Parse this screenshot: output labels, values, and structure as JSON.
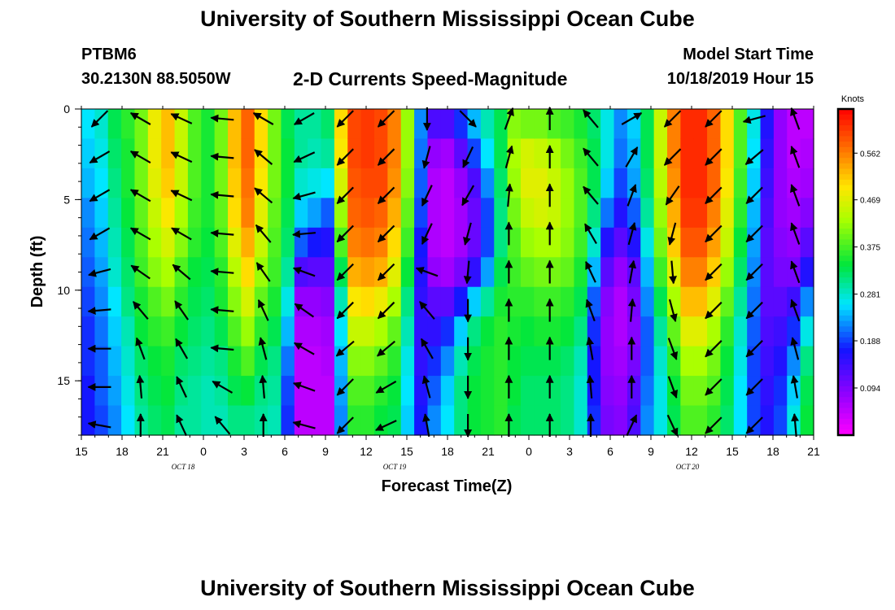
{
  "header": {
    "title": "University of Southern Mississippi Ocean Cube",
    "station": "PTBM6",
    "coords": "30.2130N 88.5050W",
    "subtitle": "2-D Currents Speed-Magnitude",
    "model_start_label": "Model Start Time",
    "model_start_value": "10/18/2019 Hour 15"
  },
  "footer": {
    "title": "University of Southern Mississippi Ocean Cube"
  },
  "chart_data": {
    "type": "heatmap",
    "title": "2-D Currents Speed-Magnitude",
    "xlabel": "Forecast Time(Z)",
    "ylabel": "Depth (ft)",
    "x_ticks": [
      "15",
      "18",
      "21",
      "0",
      "3",
      "6",
      "9",
      "12",
      "15",
      "18",
      "21",
      "0",
      "3",
      "6",
      "9",
      "12",
      "15",
      "18",
      "21"
    ],
    "date_labels": [
      "OCT 18",
      "OCT 19",
      "OCT 20"
    ],
    "y_ticks": [
      "0",
      "5",
      "10",
      "15"
    ],
    "y_range": [
      0,
      18
    ],
    "colorbar": {
      "unit": "Knots",
      "ticks": [
        "0.562",
        "0.469",
        "0.375",
        "0.281",
        "0.188",
        "0.094"
      ],
      "range": [
        0,
        0.65
      ]
    },
    "speed_knots_by_time": [
      {
        "hour": 15,
        "speed": [
          0.26,
          0.25,
          0.24,
          0.22,
          0.21,
          0.2,
          0.19,
          0.18,
          0.18,
          0.17,
          0.17
        ]
      },
      {
        "hour": 16,
        "speed": [
          0.28,
          0.27,
          0.26,
          0.25,
          0.24,
          0.23,
          0.22,
          0.21,
          0.2,
          0.2,
          0.19
        ]
      },
      {
        "hour": 17,
        "speed": [
          0.33,
          0.32,
          0.31,
          0.3,
          0.29,
          0.28,
          0.26,
          0.25,
          0.24,
          0.23,
          0.22
        ]
      },
      {
        "hour": 18,
        "speed": [
          0.36,
          0.35,
          0.35,
          0.34,
          0.33,
          0.32,
          0.31,
          0.29,
          0.28,
          0.27,
          0.26
        ]
      },
      {
        "hour": 19,
        "speed": [
          0.4,
          0.4,
          0.4,
          0.39,
          0.38,
          0.37,
          0.35,
          0.34,
          0.32,
          0.31,
          0.3
        ]
      },
      {
        "hour": 20,
        "speed": [
          0.48,
          0.48,
          0.47,
          0.45,
          0.43,
          0.41,
          0.38,
          0.36,
          0.34,
          0.33,
          0.32
        ]
      },
      {
        "hour": 21,
        "speed": [
          0.52,
          0.52,
          0.51,
          0.49,
          0.46,
          0.43,
          0.4,
          0.37,
          0.35,
          0.34,
          0.33
        ]
      },
      {
        "hour": 22,
        "speed": [
          0.45,
          0.45,
          0.45,
          0.43,
          0.41,
          0.38,
          0.36,
          0.34,
          0.32,
          0.31,
          0.3
        ]
      },
      {
        "hour": 23,
        "speed": [
          0.38,
          0.38,
          0.38,
          0.37,
          0.36,
          0.34,
          0.33,
          0.32,
          0.31,
          0.3,
          0.3
        ]
      },
      {
        "hour": 0,
        "speed": [
          0.35,
          0.35,
          0.35,
          0.35,
          0.34,
          0.33,
          0.32,
          0.31,
          0.3,
          0.29,
          0.29
        ]
      },
      {
        "hour": 1,
        "speed": [
          0.4,
          0.4,
          0.4,
          0.39,
          0.38,
          0.36,
          0.35,
          0.33,
          0.31,
          0.3,
          0.29
        ]
      },
      {
        "hour": 2,
        "speed": [
          0.52,
          0.52,
          0.51,
          0.5,
          0.47,
          0.44,
          0.41,
          0.38,
          0.35,
          0.33,
          0.31
        ]
      },
      {
        "hour": 3,
        "speed": [
          0.58,
          0.58,
          0.57,
          0.56,
          0.53,
          0.5,
          0.46,
          0.42,
          0.38,
          0.34,
          0.31
        ]
      },
      {
        "hour": 4,
        "speed": [
          0.5,
          0.5,
          0.49,
          0.47,
          0.45,
          0.42,
          0.39,
          0.36,
          0.33,
          0.31,
          0.3
        ]
      },
      {
        "hour": 5,
        "speed": [
          0.4,
          0.4,
          0.4,
          0.39,
          0.38,
          0.37,
          0.35,
          0.33,
          0.31,
          0.3,
          0.29
        ]
      },
      {
        "hour": 6,
        "speed": [
          0.33,
          0.34,
          0.34,
          0.33,
          0.32,
          0.3,
          0.27,
          0.24,
          0.21,
          0.19,
          0.18
        ]
      },
      {
        "hour": 7,
        "speed": [
          0.3,
          0.3,
          0.28,
          0.25,
          0.2,
          0.13,
          0.08,
          0.06,
          0.05,
          0.05,
          0.05
        ]
      },
      {
        "hour": 8,
        "speed": [
          0.3,
          0.29,
          0.27,
          0.23,
          0.17,
          0.12,
          0.08,
          0.06,
          0.05,
          0.05,
          0.05
        ]
      },
      {
        "hour": 9,
        "speed": [
          0.32,
          0.3,
          0.26,
          0.2,
          0.16,
          0.12,
          0.09,
          0.07,
          0.06,
          0.05,
          0.05
        ]
      },
      {
        "hour": 10,
        "speed": [
          0.5,
          0.49,
          0.46,
          0.42,
          0.38,
          0.33,
          0.29,
          0.26,
          0.24,
          0.23,
          0.22
        ]
      },
      {
        "hour": 11,
        "speed": [
          0.6,
          0.6,
          0.59,
          0.58,
          0.56,
          0.53,
          0.49,
          0.45,
          0.41,
          0.38,
          0.36
        ]
      },
      {
        "hour": 12,
        "speed": [
          0.61,
          0.61,
          0.6,
          0.59,
          0.57,
          0.54,
          0.5,
          0.45,
          0.41,
          0.38,
          0.36
        ]
      },
      {
        "hour": 13,
        "speed": [
          0.6,
          0.6,
          0.6,
          0.58,
          0.56,
          0.53,
          0.48,
          0.43,
          0.39,
          0.36,
          0.34
        ]
      },
      {
        "hour": 14,
        "speed": [
          0.56,
          0.56,
          0.55,
          0.53,
          0.5,
          0.47,
          0.43,
          0.39,
          0.36,
          0.34,
          0.33
        ]
      },
      {
        "hour": 15,
        "speed": [
          0.42,
          0.42,
          0.41,
          0.39,
          0.37,
          0.34,
          0.31,
          0.29,
          0.27,
          0.26,
          0.25
        ]
      },
      {
        "hour": 16,
        "speed": [
          0.22,
          0.21,
          0.2,
          0.19,
          0.17,
          0.16,
          0.15,
          0.15,
          0.15,
          0.16,
          0.17
        ]
      },
      {
        "hour": 17,
        "speed": [
          0.13,
          0.08,
          0.06,
          0.06,
          0.06,
          0.08,
          0.12,
          0.15,
          0.18,
          0.2,
          0.22
        ]
      },
      {
        "hour": 18,
        "speed": [
          0.13,
          0.07,
          0.05,
          0.05,
          0.05,
          0.07,
          0.12,
          0.18,
          0.22,
          0.25,
          0.26
        ]
      },
      {
        "hour": 19,
        "speed": [
          0.18,
          0.12,
          0.08,
          0.07,
          0.07,
          0.1,
          0.17,
          0.25,
          0.29,
          0.31,
          0.31
        ]
      },
      {
        "hour": 20,
        "speed": [
          0.24,
          0.19,
          0.13,
          0.11,
          0.11,
          0.15,
          0.25,
          0.31,
          0.33,
          0.34,
          0.34
        ]
      },
      {
        "hour": 21,
        "speed": [
          0.29,
          0.26,
          0.22,
          0.19,
          0.19,
          0.23,
          0.3,
          0.34,
          0.35,
          0.35,
          0.35
        ]
      },
      {
        "hour": 22,
        "speed": [
          0.33,
          0.33,
          0.32,
          0.31,
          0.31,
          0.33,
          0.35,
          0.36,
          0.36,
          0.36,
          0.36
        ]
      },
      {
        "hour": 23,
        "speed": [
          0.41,
          0.43,
          0.42,
          0.4,
          0.38,
          0.37,
          0.36,
          0.35,
          0.34,
          0.34,
          0.33
        ]
      },
      {
        "hour": 0,
        "speed": [
          0.4,
          0.46,
          0.47,
          0.45,
          0.42,
          0.39,
          0.36,
          0.34,
          0.33,
          0.32,
          0.32
        ]
      },
      {
        "hour": 1,
        "speed": [
          0.4,
          0.45,
          0.47,
          0.46,
          0.43,
          0.4,
          0.37,
          0.35,
          0.33,
          0.32,
          0.32
        ]
      },
      {
        "hour": 2,
        "speed": [
          0.38,
          0.43,
          0.45,
          0.45,
          0.43,
          0.4,
          0.37,
          0.35,
          0.33,
          0.32,
          0.32
        ]
      },
      {
        "hour": 3,
        "speed": [
          0.37,
          0.4,
          0.42,
          0.42,
          0.41,
          0.39,
          0.36,
          0.34,
          0.32,
          0.31,
          0.31
        ]
      },
      {
        "hour": 4,
        "speed": [
          0.35,
          0.37,
          0.38,
          0.38,
          0.37,
          0.35,
          0.33,
          0.31,
          0.29,
          0.28,
          0.28
        ]
      },
      {
        "hour": 5,
        "speed": [
          0.32,
          0.33,
          0.33,
          0.31,
          0.28,
          0.24,
          0.2,
          0.18,
          0.17,
          0.17,
          0.18
        ]
      },
      {
        "hour": 6,
        "speed": [
          0.27,
          0.27,
          0.25,
          0.21,
          0.16,
          0.12,
          0.09,
          0.08,
          0.08,
          0.09,
          0.1
        ]
      },
      {
        "hour": 7,
        "speed": [
          0.22,
          0.21,
          0.19,
          0.16,
          0.12,
          0.08,
          0.06,
          0.06,
          0.07,
          0.08,
          0.09
        ]
      },
      {
        "hour": 8,
        "speed": [
          0.25,
          0.24,
          0.23,
          0.2,
          0.16,
          0.12,
          0.1,
          0.09,
          0.1,
          0.12,
          0.13
        ]
      },
      {
        "hour": 9,
        "speed": [
          0.33,
          0.33,
          0.32,
          0.3,
          0.27,
          0.24,
          0.22,
          0.2,
          0.2,
          0.21,
          0.22
        ]
      },
      {
        "hour": 10,
        "speed": [
          0.45,
          0.45,
          0.44,
          0.42,
          0.4,
          0.37,
          0.33,
          0.3,
          0.28,
          0.27,
          0.27
        ]
      },
      {
        "hour": 11,
        "speed": [
          0.56,
          0.56,
          0.55,
          0.53,
          0.51,
          0.47,
          0.43,
          0.39,
          0.36,
          0.34,
          0.33
        ]
      },
      {
        "hour": 12,
        "speed": [
          0.62,
          0.62,
          0.62,
          0.61,
          0.59,
          0.56,
          0.52,
          0.47,
          0.43,
          0.4,
          0.38
        ]
      },
      {
        "hour": 13,
        "speed": [
          0.62,
          0.62,
          0.62,
          0.61,
          0.59,
          0.56,
          0.52,
          0.47,
          0.43,
          0.4,
          0.38
        ]
      },
      {
        "hour": 14,
        "speed": [
          0.58,
          0.58,
          0.58,
          0.56,
          0.54,
          0.51,
          0.47,
          0.43,
          0.4,
          0.38,
          0.36
        ]
      },
      {
        "hour": 15,
        "speed": [
          0.5,
          0.5,
          0.49,
          0.47,
          0.45,
          0.42,
          0.39,
          0.36,
          0.34,
          0.33,
          0.32
        ]
      },
      {
        "hour": 16,
        "speed": [
          0.38,
          0.38,
          0.37,
          0.36,
          0.34,
          0.32,
          0.3,
          0.28,
          0.27,
          0.26,
          0.26
        ]
      },
      {
        "hour": 17,
        "speed": [
          0.27,
          0.26,
          0.25,
          0.24,
          0.23,
          0.22,
          0.21,
          0.2,
          0.19,
          0.19,
          0.19
        ]
      },
      {
        "hour": 18,
        "speed": [
          0.16,
          0.15,
          0.14,
          0.13,
          0.12,
          0.12,
          0.12,
          0.13,
          0.14,
          0.15,
          0.16
        ]
      },
      {
        "hour": 19,
        "speed": [
          0.08,
          0.08,
          0.08,
          0.08,
          0.09,
          0.1,
          0.12,
          0.14,
          0.16,
          0.18,
          0.19
        ]
      },
      {
        "hour": 20,
        "speed": [
          0.05,
          0.05,
          0.06,
          0.07,
          0.08,
          0.1,
          0.14,
          0.18,
          0.22,
          0.25,
          0.27
        ]
      },
      {
        "hour": 21,
        "speed": [
          0.05,
          0.06,
          0.07,
          0.09,
          0.12,
          0.16,
          0.22,
          0.27,
          0.31,
          0.33,
          0.34
        ]
      }
    ],
    "vector_directions_deg_by_time": [
      {
        "hour": 16,
        "dir_deg": [
          225,
          240,
          240,
          240,
          255,
          265,
          270,
          270,
          280
        ]
      },
      {
        "hour": 21,
        "dir_deg": [
          300,
          300,
          300,
          300,
          305,
          320,
          340,
          355,
          0
        ]
      },
      {
        "hour": 0,
        "dir_deg": [
          295,
          295,
          295,
          300,
          310,
          325,
          330,
          335,
          335
        ]
      },
      {
        "hour": 3,
        "dir_deg": [
          275,
          275,
          275,
          275,
          275,
          275,
          275,
          300,
          320
        ]
      },
      {
        "hour": 6,
        "dir_deg": [
          300,
          310,
          310,
          320,
          325,
          335,
          345,
          355,
          0
        ]
      },
      {
        "hour": 8,
        "dir_deg": [
          240,
          245,
          255,
          265,
          290,
          305,
          300,
          290,
          285
        ]
      },
      {
        "hour": 11,
        "dir_deg": [
          225,
          225,
          225,
          225,
          225,
          225,
          230,
          225,
          225
        ]
      },
      {
        "hour": 14,
        "dir_deg": [
          225,
          225,
          225,
          225,
          225,
          225,
          230,
          240,
          245
        ]
      },
      {
        "hour": 18,
        "dir_deg": [
          180,
          195,
          205,
          205,
          290,
          320,
          330,
          345,
          350
        ]
      },
      {
        "hour": 21,
        "dir_deg": [
          135,
          205,
          210,
          195,
          185,
          180,
          180,
          180,
          180
        ]
      },
      {
        "hour": 0,
        "dir_deg": [
          20,
          15,
          5,
          0,
          0,
          0,
          0,
          0,
          0
        ]
      },
      {
        "hour": 3,
        "dir_deg": [
          0,
          0,
          0,
          0,
          0,
          0,
          0,
          0,
          0
        ]
      },
      {
        "hour": 4,
        "dir_deg": [
          320,
          320,
          320,
          330,
          335,
          340,
          350,
          355,
          0
        ]
      },
      {
        "hour": 6,
        "dir_deg": [
          60,
          30,
          20,
          15,
          10,
          5,
          0,
          0,
          25
        ]
      },
      {
        "hour": 9,
        "dir_deg": [
          225,
          225,
          215,
          195,
          175,
          165,
          160,
          160,
          155
        ]
      },
      {
        "hour": 14,
        "dir_deg": [
          225,
          225,
          225,
          225,
          225,
          225,
          225,
          225,
          225
        ]
      },
      {
        "hour": 18,
        "dir_deg": [
          255,
          230,
          225,
          225,
          225,
          225,
          225,
          225,
          225
        ]
      },
      {
        "hour": 21,
        "dir_deg": [
          340,
          340,
          340,
          340,
          340,
          340,
          345,
          350,
          355
        ]
      }
    ]
  }
}
